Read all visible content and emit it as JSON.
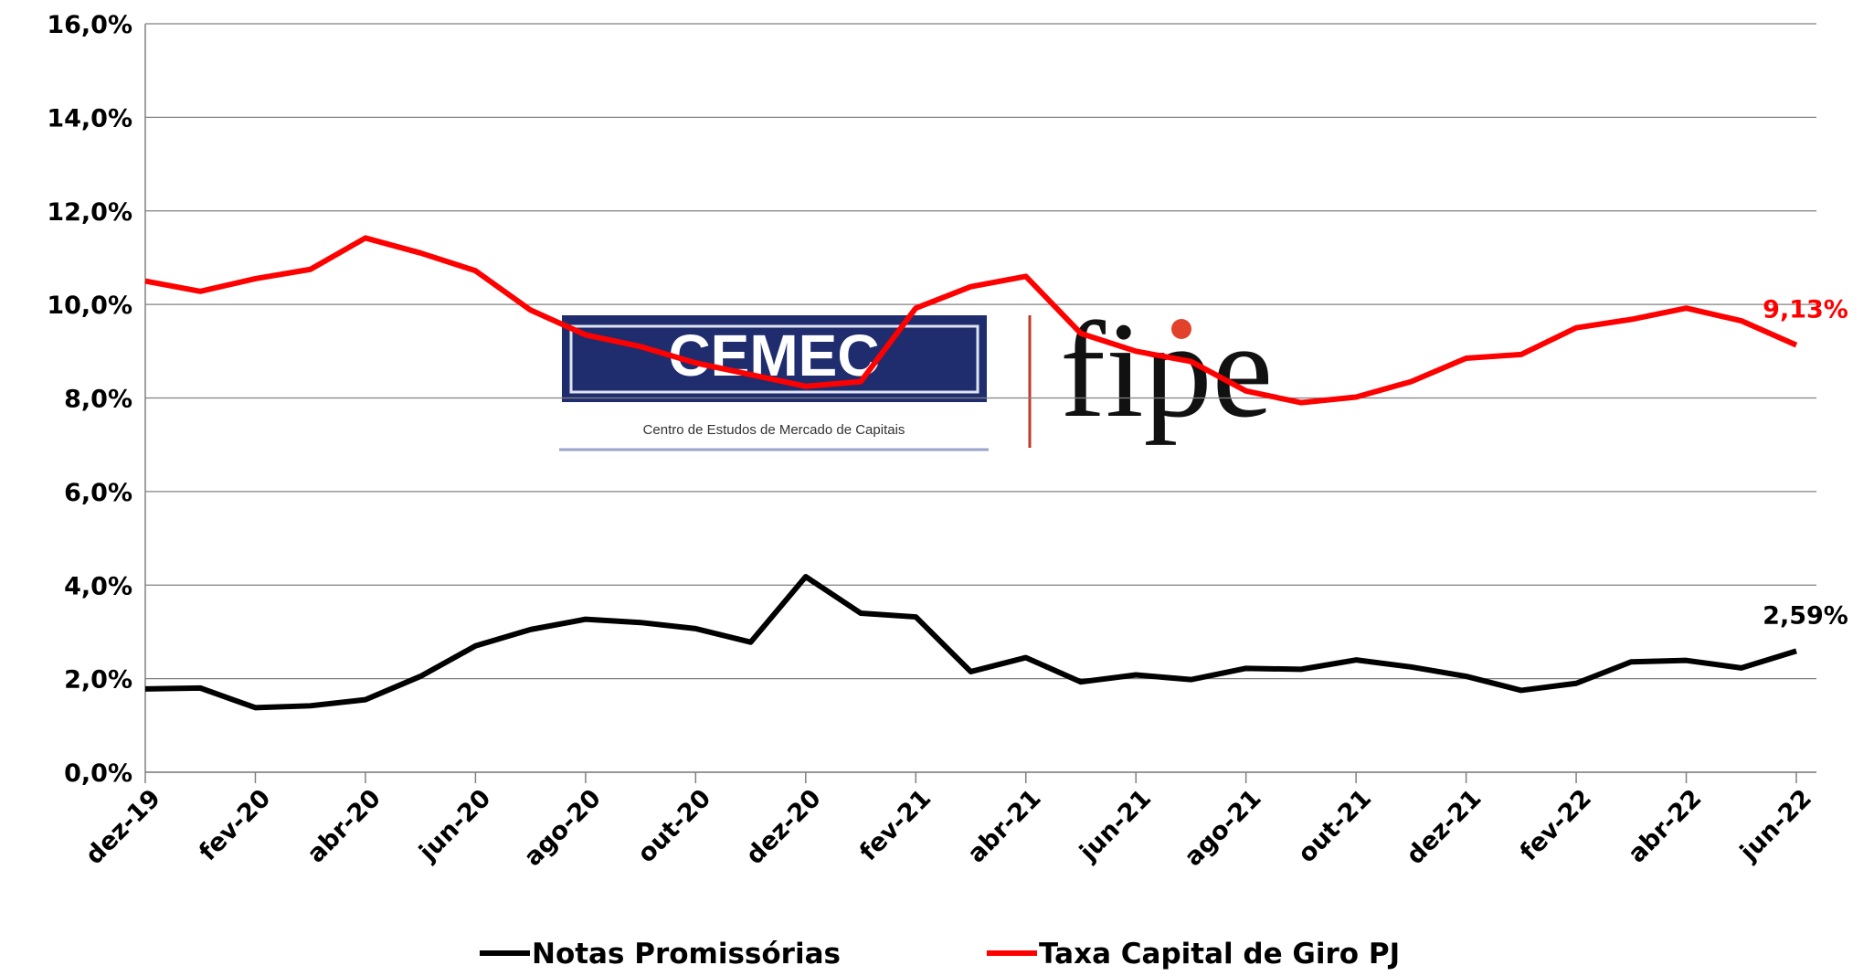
{
  "chart_data": {
    "type": "line",
    "categories": [
      "dez-19",
      null,
      "fev-20",
      null,
      "abr-20",
      null,
      "jun-20",
      null,
      "ago-20",
      null,
      "out-20",
      null,
      "dez-20",
      null,
      "fev-21",
      null,
      "abr-21",
      null,
      "jun-21",
      null,
      "ago-21",
      null,
      "out-21",
      null,
      "dez-21",
      null,
      "fev-22",
      null,
      "abr-22",
      null,
      "jun-22"
    ],
    "series": [
      {
        "name": "Notas Promissórias",
        "color": "#000000",
        "values": [
          1.78,
          1.8,
          1.38,
          1.42,
          1.55,
          2.05,
          2.7,
          3.05,
          3.27,
          3.2,
          3.07,
          2.78,
          4.18,
          3.4,
          3.32,
          2.15,
          2.45,
          1.93,
          2.08,
          1.98,
          2.22,
          2.2,
          2.4,
          2.25,
          2.05,
          1.75,
          1.9,
          2.36,
          2.39,
          2.23,
          2.59
        ],
        "value_labels": [
          null,
          null,
          null,
          null,
          null,
          null,
          null,
          null,
          null,
          null,
          null,
          null,
          null,
          null,
          null,
          null,
          null,
          null,
          null,
          null,
          null,
          null,
          null,
          null,
          null,
          null,
          null,
          null,
          null,
          null,
          "2,59%"
        ]
      },
      {
        "name": "Taxa Capital de Giro PJ",
        "color": "#ff0000",
        "values": [
          10.5,
          10.28,
          10.55,
          10.75,
          11.42,
          11.1,
          10.72,
          9.88,
          9.35,
          9.1,
          8.75,
          8.5,
          8.25,
          8.35,
          9.92,
          10.38,
          10.6,
          9.38,
          9.0,
          8.78,
          8.15,
          7.9,
          8.02,
          8.35,
          8.85,
          8.93,
          9.5,
          9.68,
          9.92,
          9.65,
          9.13
        ],
        "value_labels": [
          null,
          null,
          null,
          null,
          null,
          null,
          null,
          null,
          null,
          null,
          null,
          null,
          null,
          null,
          null,
          null,
          null,
          null,
          null,
          null,
          null,
          null,
          null,
          null,
          null,
          null,
          null,
          null,
          null,
          null,
          "9,13%"
        ]
      }
    ],
    "ylim": [
      0,
      16
    ],
    "yticks": [
      {
        "value": 0,
        "label": "0,0%"
      },
      {
        "value": 2,
        "label": "2,0%"
      },
      {
        "value": 4,
        "label": "4,0%"
      },
      {
        "value": 6,
        "label": "6,0%"
      },
      {
        "value": 8,
        "label": "8,0%"
      },
      {
        "value": 10,
        "label": "10,0%"
      },
      {
        "value": 12,
        "label": "12,0%"
      },
      {
        "value": 14,
        "label": "14,0%"
      },
      {
        "value": 16,
        "label": "16,0%"
      }
    ],
    "grid": true,
    "legend": "bottom"
  },
  "logo": {
    "left": "CEMEC",
    "subtitle": "Centro de Estudos de Mercado de Capitais",
    "right": "fipe"
  }
}
